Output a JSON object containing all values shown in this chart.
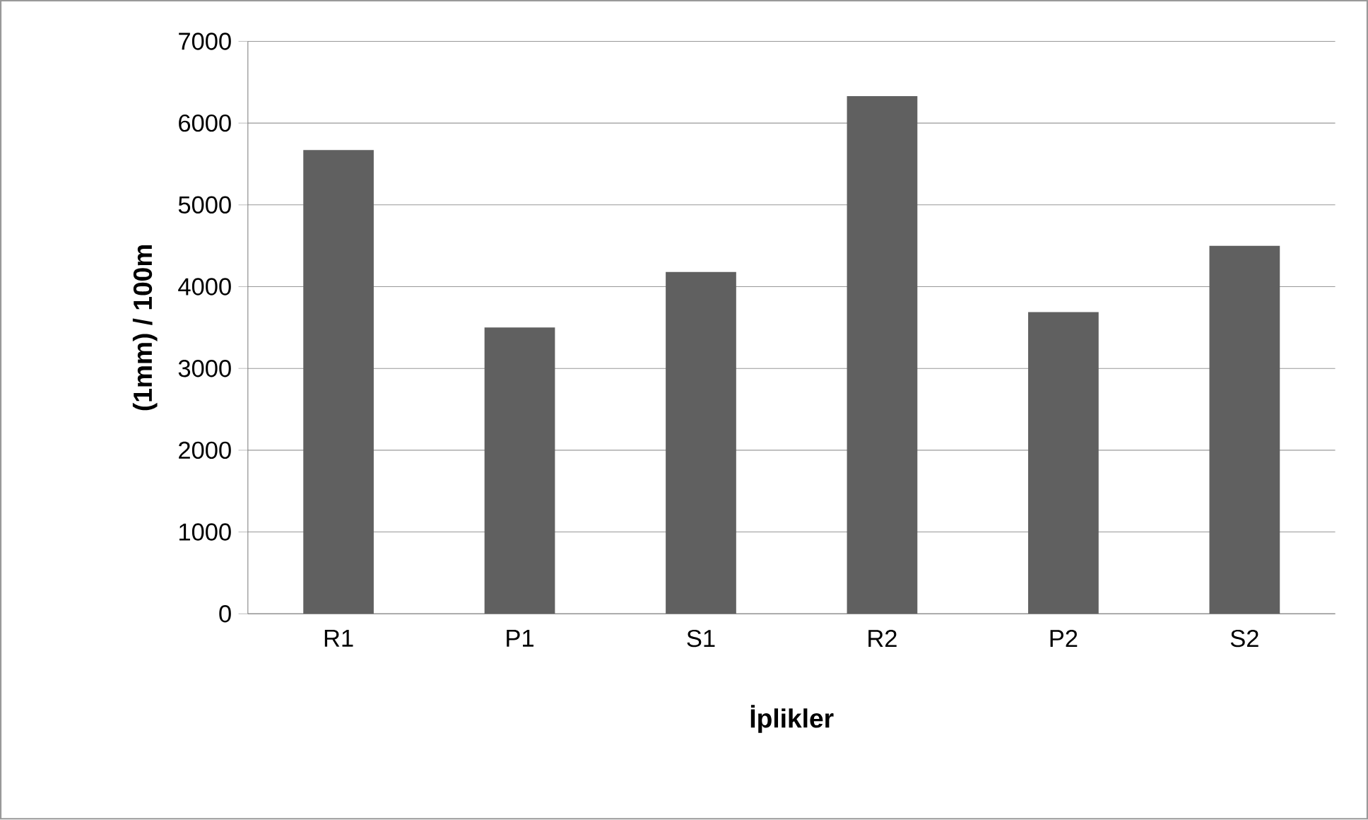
{
  "chart_data": {
    "type": "bar",
    "xlabel": "İplikler",
    "ylabel": "(1mm) / 100m",
    "categories": [
      "R1",
      "P1",
      "S1",
      "R2",
      "P2",
      "S2"
    ],
    "values": [
      5670,
      3500,
      4180,
      6330,
      3690,
      4500
    ],
    "color": "#606060",
    "ylim": [
      0,
      7000
    ],
    "yticks": [
      0,
      1000,
      2000,
      3000,
      4000,
      5000,
      6000,
      7000
    ],
    "grid": "y"
  }
}
